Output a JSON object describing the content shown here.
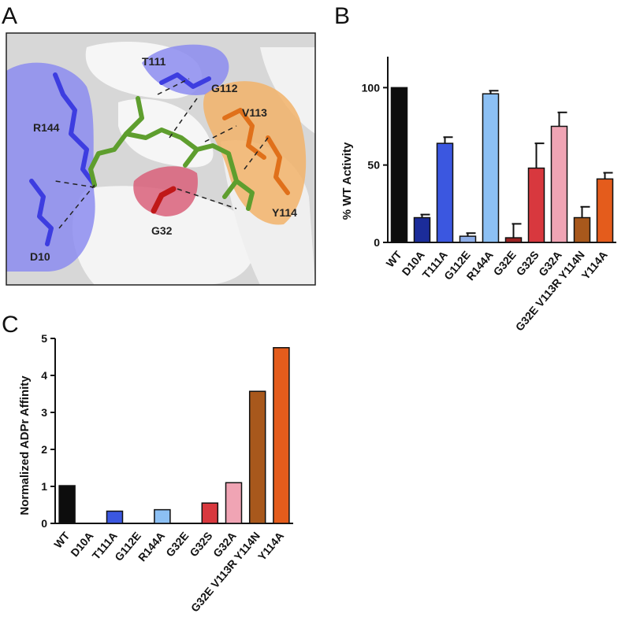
{
  "panels": {
    "a": "A",
    "b": "B",
    "c": "C"
  },
  "structure_labels": {
    "t111": "T111",
    "g112": "G112",
    "v113": "V113",
    "r144": "R144",
    "y114": "Y114",
    "g32": "G32",
    "d10": "D10"
  },
  "colors": {
    "blue_surface": "#8c8cf0",
    "orange_surface": "#f2b36a",
    "red_surface": "#d9607a",
    "ligand": "#5e9e2e",
    "blue_residue": "#3d3de0",
    "orange_residue": "#e0701a",
    "red_residue": "#c01818"
  },
  "chart_data": [
    {
      "panel": "B",
      "type": "bar",
      "categories": [
        "WT",
        "D10A",
        "T111A",
        "G112E",
        "R144A",
        "G32E",
        "G32S",
        "G32A",
        "G32E V113R Y114N",
        "Y114A"
      ],
      "values": [
        100,
        16,
        64,
        4,
        96,
        3,
        48,
        75,
        16,
        41
      ],
      "errors": [
        0,
        2,
        4,
        2,
        2,
        9,
        16,
        9,
        7,
        4
      ],
      "colors": [
        "#0d0d0d",
        "#1b2c9a",
        "#3b57e0",
        "#8eaee8",
        "#8cc0f4",
        "#9a2222",
        "#d8383e",
        "#f0a4b4",
        "#a8581c",
        "#e45c1c"
      ],
      "ylabel": "% WT Activity",
      "ylim": [
        0,
        120
      ],
      "yticks": [
        "0",
        "50",
        "100"
      ]
    },
    {
      "panel": "C",
      "type": "bar",
      "categories": [
        "WT",
        "D10A",
        "T111A",
        "G112E",
        "R144A",
        "G32E",
        "G32S",
        "G32A",
        "G32E V113R Y114N",
        "Y114A"
      ],
      "values": [
        1.02,
        0,
        0.33,
        0,
        0.37,
        0,
        0.55,
        1.1,
        3.57,
        4.75
      ],
      "colors": [
        "#0d0d0d",
        "#1b2c9a",
        "#3b57e0",
        "#8eaee8",
        "#8cc0f4",
        "#9a2222",
        "#d8383e",
        "#f0a4b4",
        "#a8581c",
        "#e45c1c"
      ],
      "ylabel": "Normalized ADPr Affinity",
      "ylim": [
        0,
        5
      ],
      "yticks": [
        "0",
        "1",
        "2",
        "3",
        "4",
        "5"
      ]
    }
  ]
}
